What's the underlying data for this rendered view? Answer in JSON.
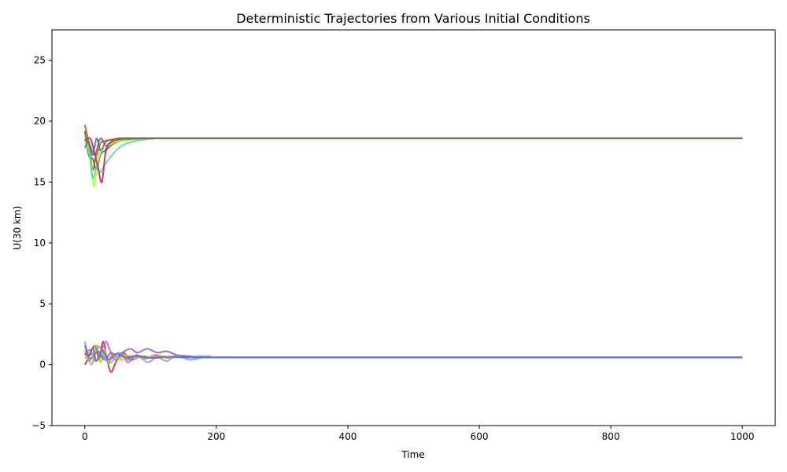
{
  "chart_data": {
    "type": "line",
    "title": "Deterministic Trajectories from Various Initial Conditions",
    "xlabel": "Time",
    "ylabel": "U(30 km)",
    "xlim": [
      -50,
      1050
    ],
    "ylim": [
      -5,
      27.5
    ],
    "xticks": [
      0,
      200,
      400,
      600,
      800,
      1000
    ],
    "yticks": [
      -5,
      0,
      5,
      10,
      15,
      20,
      25
    ],
    "ytick_labels": [
      "−5",
      "0",
      "5",
      "10",
      "15",
      "20",
      "25"
    ],
    "grid": false,
    "legend": "none",
    "upper_equilibrium": 18.6,
    "lower_equilibrium": 0.6,
    "series": [
      {
        "color": "#c44e1c",
        "x": [
          0,
          6,
          12,
          18,
          24,
          32,
          42,
          56,
          75,
          100,
          130,
          1000
        ],
        "y": [
          19.7,
          18.2,
          16.0,
          17.6,
          18.6,
          18.0,
          18.3,
          18.5,
          18.55,
          18.6,
          18.6,
          18.6
        ]
      },
      {
        "color": "#2e7d32",
        "x": [
          0,
          6,
          12,
          18,
          24,
          32,
          42,
          56,
          75,
          100,
          130,
          1000
        ],
        "y": [
          19.2,
          17.2,
          16.9,
          16.0,
          17.3,
          17.6,
          18.1,
          18.4,
          18.5,
          18.6,
          18.6,
          18.6
        ]
      },
      {
        "color": "#adff2f",
        "x": [
          0,
          6,
          10,
          14,
          18,
          24,
          32,
          42,
          56,
          75,
          100,
          130,
          1000
        ],
        "y": [
          18.6,
          17.5,
          16.2,
          14.6,
          16.0,
          17.5,
          17.8,
          18.2,
          18.4,
          18.5,
          18.6,
          18.6,
          18.6
        ]
      },
      {
        "color": "#40e0a0",
        "x": [
          0,
          6,
          12,
          18,
          24,
          30,
          38,
          48,
          60,
          80,
          105,
          140,
          1000
        ],
        "y": [
          18.3,
          17.8,
          15.3,
          16.3,
          15.8,
          16.4,
          17.0,
          17.6,
          18.1,
          18.4,
          18.55,
          18.6,
          18.6
        ]
      },
      {
        "color": "#c2185b",
        "x": [
          0,
          8,
          14,
          20,
          26,
          32,
          40,
          50,
          65,
          85,
          110,
          140,
          1000
        ],
        "y": [
          18.4,
          18.6,
          17.6,
          16.2,
          15.0,
          17.6,
          18.3,
          18.6,
          18.55,
          18.6,
          18.6,
          18.6,
          18.6
        ]
      },
      {
        "color": "#3d6fb0",
        "x": [
          0,
          6,
          12,
          18,
          24,
          32,
          42,
          56,
          75,
          100,
          130,
          1000
        ],
        "y": [
          17.8,
          18.3,
          17.2,
          18.6,
          17.6,
          18.3,
          18.5,
          18.55,
          18.6,
          18.6,
          18.6,
          18.6
        ]
      },
      {
        "color": "#8b6d3a",
        "x": [
          0,
          6,
          12,
          18,
          24,
          32,
          42,
          56,
          75,
          100,
          130,
          1000
        ],
        "y": [
          18.5,
          18.2,
          17.5,
          17.2,
          18.2,
          18.4,
          18.5,
          18.6,
          18.6,
          18.6,
          18.6,
          18.6
        ]
      },
      {
        "color": "#c81e1e",
        "x": [
          0,
          5,
          10,
          16,
          22,
          28,
          34,
          40,
          48,
          58,
          70,
          85,
          100,
          120,
          150,
          190,
          240,
          1000
        ],
        "y": [
          0.0,
          0.5,
          1.2,
          1.5,
          0.5,
          1.9,
          0.4,
          -0.6,
          0.3,
          1.0,
          0.4,
          0.7,
          0.6,
          0.65,
          0.6,
          0.6,
          0.6,
          0.6
        ]
      },
      {
        "color": "#b5c90e",
        "x": [
          0,
          6,
          12,
          18,
          24,
          30,
          36,
          42,
          52,
          62,
          75,
          90,
          110,
          135,
          170,
          220,
          1000
        ],
        "y": [
          1.2,
          0.3,
          0.8,
          1.6,
          0.2,
          1.3,
          0.0,
          0.9,
          0.5,
          0.8,
          0.5,
          0.7,
          0.55,
          0.65,
          0.6,
          0.6,
          0.6
        ]
      },
      {
        "color": "#d84fd8",
        "x": [
          0,
          8,
          16,
          24,
          32,
          38,
          46,
          56,
          66,
          78,
          92,
          108,
          126,
          148,
          175,
          210,
          1000
        ],
        "y": [
          0.8,
          1.2,
          0.3,
          1.0,
          1.9,
          1.2,
          0.4,
          0.9,
          0.2,
          0.8,
          0.5,
          0.8,
          0.55,
          0.7,
          0.6,
          0.6,
          0.6
        ]
      },
      {
        "color": "#8b55d0",
        "x": [
          0,
          10,
          20,
          30,
          40,
          50,
          60,
          70,
          80,
          95,
          110,
          125,
          140,
          160,
          185,
          215,
          1000
        ],
        "y": [
          0.9,
          0.5,
          1.1,
          0.4,
          1.0,
          0.6,
          1.1,
          1.3,
          1.0,
          1.3,
          1.0,
          1.1,
          0.8,
          0.7,
          0.6,
          0.6,
          0.6
        ]
      },
      {
        "color": "#ffa040",
        "x": [
          0,
          8,
          16,
          24,
          34,
          44,
          56,
          70,
          88,
          110,
          140,
          180,
          1000
        ],
        "y": [
          0.5,
          1.0,
          0.3,
          0.9,
          0.5,
          0.8,
          0.4,
          0.75,
          0.55,
          0.7,
          0.6,
          0.6,
          0.6
        ]
      },
      {
        "color": "#7f9fd8",
        "x": [
          0,
          4,
          10,
          16,
          22,
          30,
          40,
          52,
          66,
          80,
          95,
          110,
          125,
          140,
          160,
          190,
          230,
          1000
        ],
        "y": [
          1.9,
          1.0,
          0.0,
          1.0,
          1.5,
          0.5,
          0.2,
          1.0,
          0.4,
          0.8,
          0.2,
          0.6,
          0.3,
          0.8,
          0.4,
          0.7,
          0.6,
          0.6
        ]
      },
      {
        "color": "#4a70d0",
        "x": [
          0,
          6,
          12,
          18,
          26,
          36,
          48,
          62,
          80,
          100,
          125,
          155,
          195,
          240,
          1000
        ],
        "y": [
          1.6,
          0.7,
          1.3,
          0.3,
          1.2,
          0.4,
          0.9,
          0.6,
          0.7,
          0.55,
          0.65,
          0.6,
          0.6,
          0.6,
          0.6
        ]
      }
    ]
  }
}
